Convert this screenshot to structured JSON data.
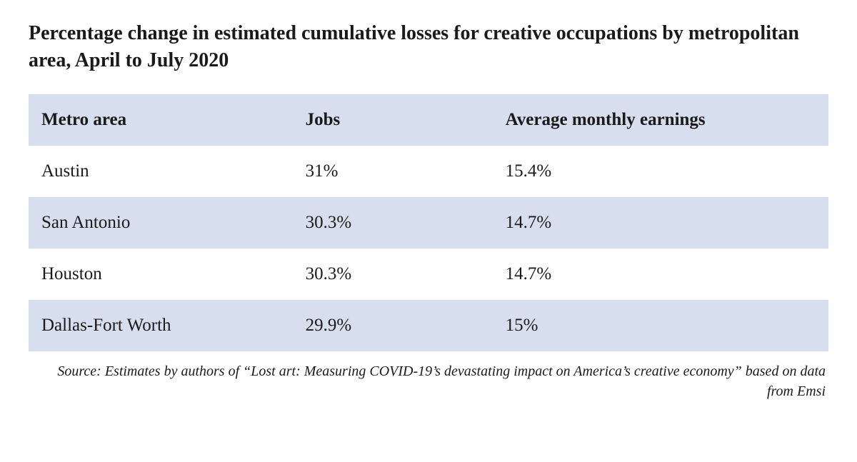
{
  "title": "Percentage change in estimated cumulative losses for creative occupations by metropolitan area, April to July 2020",
  "table": {
    "type": "table",
    "header_bg": "#d7deed",
    "row_alt_bg": "#d7deed",
    "row_bg": "#ffffff",
    "text_color": "#1a1a1a",
    "header_fontsize": 25,
    "cell_fontsize": 25,
    "columns": [
      {
        "key": "metro",
        "label": "Metro area",
        "width_pct": 33,
        "align": "left"
      },
      {
        "key": "jobs",
        "label": "Jobs",
        "width_pct": 25,
        "align": "left"
      },
      {
        "key": "earnings",
        "label": "Average monthly earnings",
        "width_pct": 42,
        "align": "left"
      }
    ],
    "rows": [
      {
        "metro": "Austin",
        "jobs": "31%",
        "earnings": "15.4%"
      },
      {
        "metro": "San Antonio",
        "jobs": "30.3%",
        "earnings": "14.7%"
      },
      {
        "metro": "Houston",
        "jobs": "30.3%",
        "earnings": "14.7%"
      },
      {
        "metro": "Dallas-Fort Worth",
        "jobs": "29.9%",
        "earnings": "15%"
      }
    ]
  },
  "source": "Source: Estimates by authors of “Lost art: Measuring COVID-19’s devastating impact on America’s creative economy” based on data from Emsi"
}
